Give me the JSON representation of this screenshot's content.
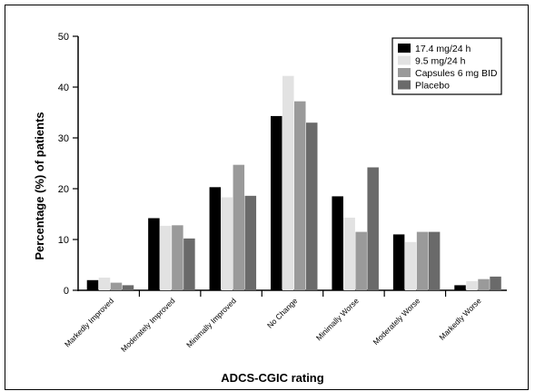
{
  "chart_data": {
    "type": "bar",
    "title": "",
    "xlabel": "ADCS-CGIC rating",
    "ylabel": "Percentage (%) of patients",
    "ylim": [
      0,
      50
    ],
    "yticks": [
      0,
      10,
      20,
      30,
      40,
      50
    ],
    "grid": false,
    "legend_position": "top-right",
    "categories": [
      "Markedly Improved",
      "Moderately Improved",
      "Minimally Improved",
      "No Change",
      "Minimally Worse",
      "Moderately Worse",
      "Markedly Worse"
    ],
    "series": [
      {
        "name": "17.4 mg/24 h",
        "color": "#000000",
        "values": [
          2.0,
          14.2,
          20.3,
          34.3,
          18.5,
          11.0,
          1.0
        ]
      },
      {
        "name": "9.5 mg/24 h",
        "color": "#e2e2e2",
        "values": [
          2.5,
          12.7,
          18.3,
          42.2,
          14.3,
          9.5,
          1.8
        ]
      },
      {
        "name": "Capsules 6 mg BID",
        "color": "#9a9a9a",
        "values": [
          1.5,
          12.8,
          24.7,
          37.2,
          11.5,
          11.5,
          2.2
        ]
      },
      {
        "name": "Placebo",
        "color": "#6a6a6a",
        "values": [
          1.0,
          10.2,
          18.6,
          33.0,
          24.2,
          11.5,
          2.7
        ]
      }
    ]
  }
}
